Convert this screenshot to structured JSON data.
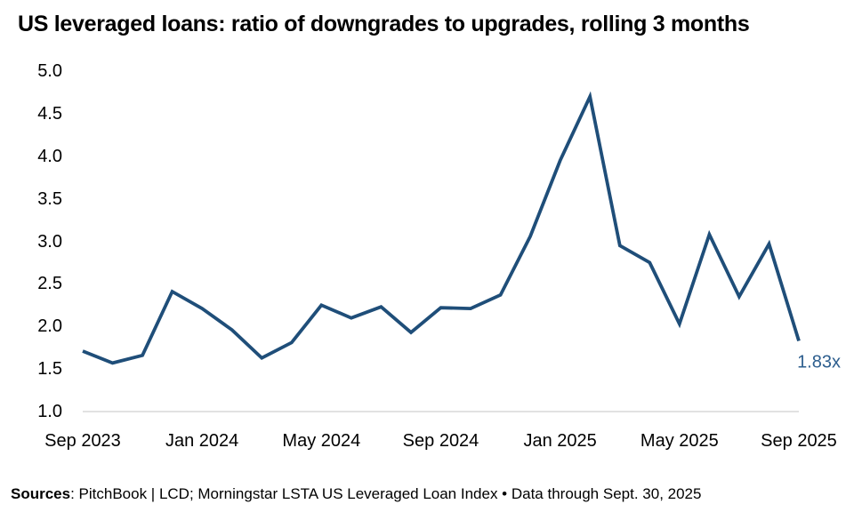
{
  "title": "US leveraged loans: ratio of downgrades to upgrades, rolling 3 months",
  "footer": {
    "sources_label": "Sources",
    "rest": ": PitchBook | LCD; Morningstar LSTA US Leveraged Loan Index • Data through Sept. 30, 2025"
  },
  "colors": {
    "line": "#1F4E79",
    "end_label": "#2D5E8E",
    "baseline_gridline": "#D9D9D9",
    "text": "#000000"
  },
  "chart_data": {
    "type": "line",
    "title": "US leveraged loans: ratio of downgrades to upgrades, rolling 3 months",
    "x": [
      "Sep 2023",
      "Oct 2023",
      "Nov 2023",
      "Dec 2023",
      "Jan 2024",
      "Feb 2024",
      "Mar 2024",
      "Apr 2024",
      "May 2024",
      "Jun 2024",
      "Jul 2024",
      "Aug 2024",
      "Sep 2024",
      "Oct 2024",
      "Nov 2024",
      "Dec 2024",
      "Jan 2025",
      "Feb 2025",
      "Mar 2025",
      "Apr 2025",
      "May 2025",
      "Jun 2025",
      "Jul 2025",
      "Aug 2025",
      "Sep 2025"
    ],
    "values": [
      1.71,
      1.57,
      1.66,
      2.41,
      2.21,
      1.96,
      1.63,
      1.81,
      2.25,
      2.1,
      2.23,
      1.93,
      2.22,
      2.21,
      2.37,
      3.06,
      3.95,
      4.7,
      2.95,
      2.75,
      2.03,
      3.08,
      2.35,
      2.97,
      1.83
    ],
    "x_tick_labels": [
      "Sep 2023",
      "Jan 2024",
      "May 2024",
      "Sep 2024",
      "Jan 2025",
      "May 2025",
      "Sep 2025"
    ],
    "x_tick_indices": [
      0,
      4,
      8,
      12,
      16,
      20,
      24
    ],
    "y_ticks": [
      1.0,
      1.5,
      2.0,
      2.5,
      3.0,
      3.5,
      4.0,
      4.5,
      5.0
    ],
    "ylim": [
      1.0,
      5.0
    ],
    "xlabel": "",
    "ylabel": "",
    "grid": "horizontal baseline at y=1.0 only",
    "legend": "none",
    "last_point_label": "1.83x"
  }
}
